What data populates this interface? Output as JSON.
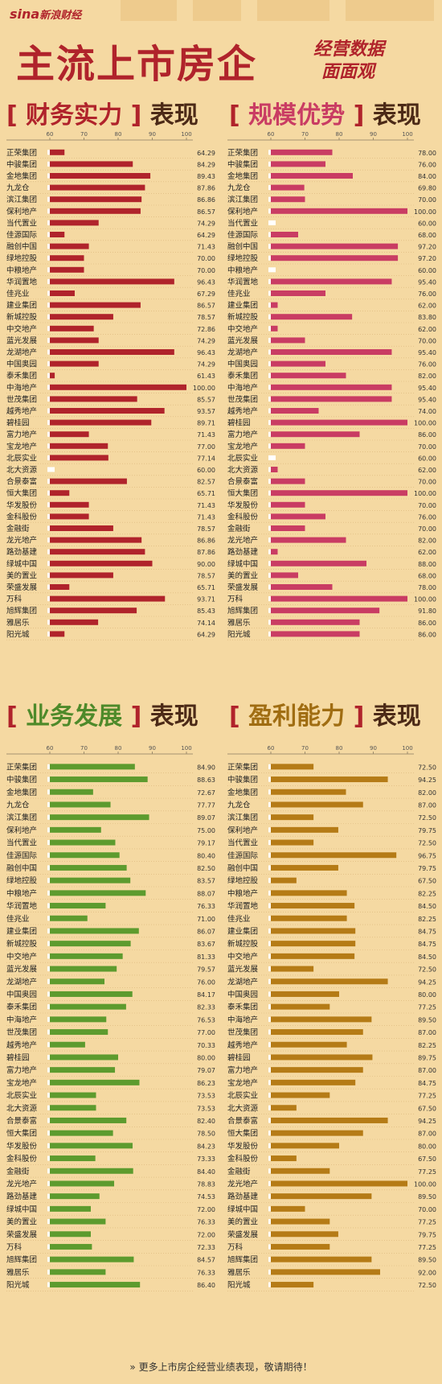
{
  "header": {
    "brand": "sina",
    "brand_cn": "新浪财经",
    "title": "主流上市房企",
    "subtitle_line1": "经营数据",
    "subtitle_line2": "面面观"
  },
  "footer": {
    "text": "更多上市房企经营业绩表现，敬请期待！"
  },
  "chart_data": [
    {
      "type": "bar",
      "title": "财务实力",
      "title_bracket_left": "[",
      "title_bracket_right": "]",
      "title_suffix": "表现",
      "color": "#b0232b",
      "xlim": [
        60,
        100
      ],
      "ticks": [
        60,
        70,
        80,
        90,
        100
      ],
      "categories": [
        "正荣集团",
        "中骏集团",
        "金地集团",
        "九龙仓",
        "滨江集团",
        "保利地产",
        "当代置业",
        "佳源国际",
        "融创中国",
        "绿地控股",
        "中粮地产",
        "华润置地",
        "佳兆业",
        "建业集团",
        "新城控股",
        "中交地产",
        "蓝光发展",
        "龙湖地产",
        "中国奥园",
        "泰禾集团",
        "中海地产",
        "世茂集团",
        "越秀地产",
        "碧桂园",
        "富力地产",
        "宝龙地产",
        "北辰实业",
        "北大资源",
        "合景泰富",
        "恒大集团",
        "华发股份",
        "金科股份",
        "金融街",
        "龙光地产",
        "路劲基建",
        "绿城中国",
        "美的置业",
        "荣盛发展",
        "万科",
        "旭辉集团",
        "雅居乐",
        "阳光城"
      ],
      "values": [
        64.29,
        84.29,
        89.43,
        87.86,
        86.86,
        86.57,
        74.29,
        64.29,
        71.43,
        70.0,
        70.0,
        96.43,
        67.29,
        86.57,
        78.57,
        72.86,
        74.29,
        96.43,
        74.29,
        61.43,
        100.0,
        85.57,
        93.57,
        89.71,
        71.43,
        77.0,
        77.14,
        60.0,
        82.57,
        65.71,
        71.43,
        71.43,
        78.57,
        86.86,
        87.86,
        90.0,
        78.57,
        65.71,
        93.71,
        85.43,
        74.14,
        64.29
      ]
    },
    {
      "type": "bar",
      "title": "规模优势",
      "title_bracket_left": "[",
      "title_bracket_right": "]",
      "title_suffix": "表现",
      "color": "#c93c63",
      "xlim": [
        60,
        100
      ],
      "ticks": [
        60,
        70,
        80,
        90,
        100
      ],
      "categories": [
        "正荣集团",
        "中骏集团",
        "金地集团",
        "九龙仓",
        "滨江集团",
        "保利地产",
        "当代置业",
        "佳源国际",
        "融创中国",
        "绿地控股",
        "中粮地产",
        "华润置地",
        "佳兆业",
        "建业集团",
        "新城控股",
        "中交地产",
        "蓝光发展",
        "龙湖地产",
        "中国奥园",
        "泰禾集团",
        "中海地产",
        "世茂集团",
        "越秀地产",
        "碧桂园",
        "富力地产",
        "宝龙地产",
        "北辰实业",
        "北大资源",
        "合景泰富",
        "恒大集团",
        "华发股份",
        "金科股份",
        "金融街",
        "龙光地产",
        "路劲基建",
        "绿城中国",
        "美的置业",
        "荣盛发展",
        "万科",
        "旭辉集团",
        "雅居乐",
        "阳光城"
      ],
      "values": [
        78.0,
        76.0,
        84.0,
        69.8,
        70.0,
        100.0,
        60.0,
        68.0,
        97.2,
        97.2,
        60.0,
        95.4,
        76.0,
        62.0,
        83.8,
        62.0,
        70.0,
        95.4,
        76.0,
        82.0,
        95.4,
        95.4,
        74.0,
        100.0,
        86.0,
        70.0,
        60.0,
        62.0,
        70.0,
        100.0,
        70.0,
        76.0,
        70.0,
        82.0,
        62.0,
        88.0,
        68.0,
        78.0,
        100.0,
        91.8,
        86.0,
        86.0
      ]
    },
    {
      "type": "bar",
      "title": "业务发展",
      "title_bracket_left": "[",
      "title_bracket_right": "]",
      "title_suffix": "表现",
      "color": "#5d9b2e",
      "xlim": [
        60,
        100
      ],
      "ticks": [
        60,
        70,
        80,
        90,
        100
      ],
      "categories": [
        "正荣集团",
        "中骏集团",
        "金地集团",
        "九龙仓",
        "滨江集团",
        "保利地产",
        "当代置业",
        "佳源国际",
        "融创中国",
        "绿地控股",
        "中粮地产",
        "华润置地",
        "佳兆业",
        "建业集团",
        "新城控股",
        "中交地产",
        "蓝光发展",
        "龙湖地产",
        "中国奥园",
        "泰禾集团",
        "中海地产",
        "世茂集团",
        "越秀地产",
        "碧桂园",
        "富力地产",
        "宝龙地产",
        "北辰实业",
        "北大资源",
        "合景泰富",
        "恒大集团",
        "华发股份",
        "金科股份",
        "金融街",
        "龙光地产",
        "路劲基建",
        "绿城中国",
        "美的置业",
        "荣盛发展",
        "万科",
        "旭辉集团",
        "雅居乐",
        "阳光城"
      ],
      "values": [
        84.9,
        88.63,
        72.67,
        77.77,
        89.07,
        75.0,
        79.17,
        80.4,
        82.5,
        83.57,
        88.07,
        76.33,
        71.0,
        86.07,
        83.67,
        81.33,
        79.57,
        76.0,
        84.17,
        82.33,
        76.53,
        77.0,
        70.33,
        80.0,
        79.07,
        86.23,
        73.53,
        73.53,
        82.4,
        78.5,
        84.23,
        73.33,
        84.4,
        78.83,
        74.53,
        72.0,
        76.33,
        72.0,
        72.33,
        84.57,
        76.33,
        86.4
      ]
    },
    {
      "type": "bar",
      "title": "盈利能力",
      "title_bracket_left": "[",
      "title_bracket_right": "]",
      "title_suffix": "表现",
      "color": "#b57b16",
      "xlim": [
        60,
        100
      ],
      "ticks": [
        60,
        70,
        80,
        90,
        100
      ],
      "categories": [
        "正荣集团",
        "中骏集团",
        "金地集团",
        "九龙仓",
        "滨江集团",
        "保利地产",
        "当代置业",
        "佳源国际",
        "融创中国",
        "绿地控股",
        "中粮地产",
        "华润置地",
        "佳兆业",
        "建业集团",
        "新城控股",
        "中交地产",
        "蓝光发展",
        "龙湖地产",
        "中国奥园",
        "泰禾集团",
        "中海地产",
        "世茂集团",
        "越秀地产",
        "碧桂园",
        "富力地产",
        "宝龙地产",
        "北辰实业",
        "北大资源",
        "合景泰富",
        "恒大集团",
        "华发股份",
        "金科股份",
        "金融街",
        "龙光地产",
        "路劲基建",
        "绿城中国",
        "美的置业",
        "荣盛发展",
        "万科",
        "旭辉集团",
        "雅居乐",
        "阳光城"
      ],
      "values": [
        72.5,
        94.25,
        82.0,
        87.0,
        72.5,
        79.75,
        72.5,
        96.75,
        79.75,
        67.5,
        82.25,
        84.5,
        82.25,
        84.75,
        84.75,
        84.5,
        72.5,
        94.25,
        80.0,
        77.25,
        89.5,
        87.0,
        82.25,
        89.75,
        87.0,
        84.75,
        77.25,
        67.5,
        94.25,
        87.0,
        80.0,
        67.5,
        77.25,
        100.0,
        89.5,
        70.0,
        77.25,
        79.75,
        77.25,
        89.5,
        92.0,
        72.5
      ]
    }
  ]
}
